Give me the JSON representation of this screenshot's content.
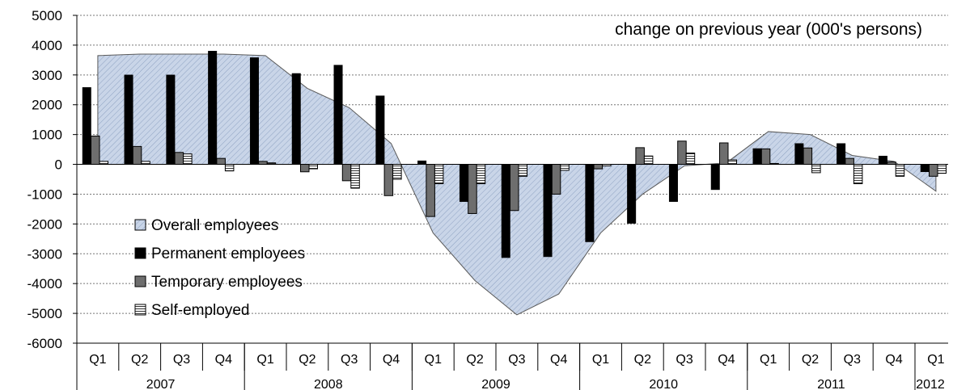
{
  "chart_data": {
    "type": "bar",
    "annotation": "change on previous year (000's persons)",
    "ylim": [
      -6000,
      5000
    ],
    "yticks": [
      5000,
      4000,
      3000,
      2000,
      1000,
      0,
      -1000,
      -2000,
      -3000,
      -4000,
      -5000,
      -6000
    ],
    "categories": [
      "Q1",
      "Q2",
      "Q3",
      "Q4",
      "Q1",
      "Q2",
      "Q3",
      "Q4",
      "Q1",
      "Q2",
      "Q3",
      "Q4",
      "Q1",
      "Q2",
      "Q3",
      "Q4",
      "Q1",
      "Q2",
      "Q3",
      "Q4",
      "Q1"
    ],
    "years": [
      {
        "label": "2007",
        "start": 0,
        "count": 4
      },
      {
        "label": "2008",
        "start": 4,
        "count": 4
      },
      {
        "label": "2009",
        "start": 8,
        "count": 4
      },
      {
        "label": "2010",
        "start": 12,
        "count": 4
      },
      {
        "label": "2011",
        "start": 16,
        "count": 4
      },
      {
        "label": "2012",
        "start": 20,
        "count": 1
      }
    ],
    "legend_position": "left-lower",
    "series": [
      {
        "name": "Overall employees",
        "kind": "area",
        "color": "#c9d5e8",
        "values": [
          3650,
          3700,
          3700,
          3700,
          3650,
          2550,
          1900,
          700,
          -2300,
          -3900,
          -5050,
          -4350,
          -2300,
          -1000,
          -50,
          50,
          1100,
          1000,
          300,
          100,
          -900
        ]
      },
      {
        "name": "Permanent employees",
        "kind": "bar",
        "color": "#000000",
        "values": [
          2580,
          3000,
          3000,
          3800,
          3580,
          3050,
          3330,
          2300,
          120,
          -1250,
          -3130,
          -3100,
          -2600,
          -1980,
          -1250,
          -850,
          530,
          700,
          700,
          280,
          -250
        ]
      },
      {
        "name": "Temporary employees",
        "kind": "bar",
        "color": "#6e6e6e",
        "values": [
          950,
          600,
          400,
          200,
          100,
          -250,
          -550,
          -1050,
          -1750,
          -1650,
          -1550,
          -1000,
          -150,
          560,
          780,
          720,
          520,
          550,
          200,
          80,
          -400
        ]
      },
      {
        "name": "Self-employed",
        "kind": "bar",
        "color": "#ffffff",
        "values": [
          100,
          100,
          350,
          -220,
          50,
          -150,
          -800,
          -500,
          -650,
          -650,
          -400,
          -200,
          -50,
          280,
          380,
          150,
          30,
          -280,
          -650,
          -400,
          -300
        ]
      }
    ]
  }
}
